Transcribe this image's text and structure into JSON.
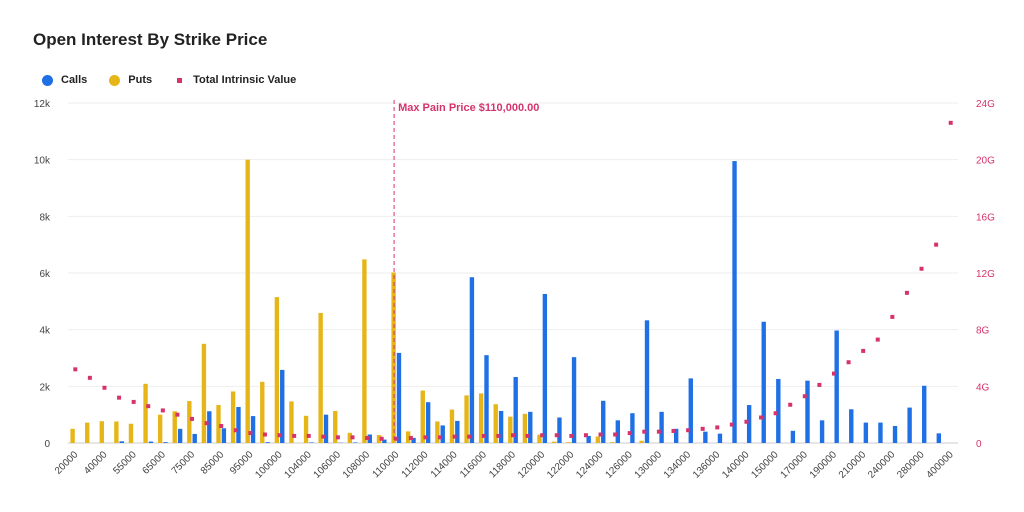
{
  "chart_data": {
    "type": "bar",
    "title": "Open Interest By Strike Price",
    "legend_position": "top-left",
    "colors": {
      "calls": "#1f6fe5",
      "puts": "#e6b619",
      "intrinsic": "#d6336c"
    },
    "y_left": {
      "ylim": [
        0,
        12000
      ],
      "ticks": [
        0,
        2000,
        4000,
        6000,
        8000,
        10000,
        12000
      ],
      "tick_labels": [
        "0",
        "2k",
        "4k",
        "6k",
        "8k",
        "10k",
        "12k"
      ]
    },
    "y_right": {
      "ylim": [
        0,
        24
      ],
      "unit": "G",
      "ticks": [
        0,
        4,
        8,
        12,
        16,
        20,
        24
      ],
      "tick_labels": [
        "0",
        "4G",
        "8G",
        "12G",
        "16G",
        "20G",
        "24G"
      ]
    },
    "categories": [
      "20000",
      "30000",
      "40000",
      "50000",
      "55000",
      "60000",
      "65000",
      "70000",
      "75000",
      "80000",
      "85000",
      "90000",
      "95000",
      "98000",
      "100000",
      "102000",
      "104000",
      "105000",
      "106000",
      "107000",
      "108000",
      "109000",
      "110000",
      "111000",
      "112000",
      "113000",
      "114000",
      "115000",
      "116000",
      "117000",
      "118000",
      "119000",
      "120000",
      "121000",
      "122000",
      "123000",
      "124000",
      "125000",
      "126000",
      "128000",
      "130000",
      "132000",
      "134000",
      "135000",
      "136000",
      "138000",
      "140000",
      "145000",
      "150000",
      "160000",
      "170000",
      "180000",
      "190000",
      "200000",
      "210000",
      "220000",
      "240000",
      "260000",
      "280000",
      "300000",
      "400000"
    ],
    "tick_labels": [
      "20000",
      "40000",
      "55000",
      "65000",
      "75000",
      "85000",
      "95000",
      "100000",
      "104000",
      "106000",
      "108000",
      "110000",
      "112000",
      "114000",
      "116000",
      "118000",
      "120000",
      "122000",
      "124000",
      "126000",
      "130000",
      "134000",
      "136000",
      "140000",
      "150000",
      "170000",
      "190000",
      "210000",
      "240000",
      "280000",
      "400000"
    ],
    "series": [
      {
        "name": "Calls",
        "values": [
          0,
          0,
          0,
          60,
          0,
          50,
          30,
          500,
          320,
          1120,
          520,
          1270,
          950,
          30,
          2580,
          0,
          20,
          1000,
          10,
          20,
          300,
          120,
          3180,
          180,
          1440,
          620,
          780,
          5850,
          3100,
          1130,
          2330,
          1100,
          5260,
          900,
          3030,
          250,
          1490,
          800,
          1050,
          4330,
          1100,
          500,
          2280,
          400,
          330,
          9950,
          1340,
          4280,
          2260,
          430,
          2200,
          800,
          3970,
          1190,
          720,
          720,
          600,
          1250,
          2020,
          340,
          0
        ]
      },
      {
        "name": "Puts",
        "values": [
          500,
          720,
          770,
          760,
          680,
          2090,
          1000,
          1120,
          1480,
          3500,
          1340,
          1820,
          10000,
          2160,
          5150,
          1470,
          960,
          4590,
          1130,
          360,
          6480,
          280,
          6020,
          410,
          1850,
          760,
          1180,
          1680,
          1750,
          1370,
          930,
          1030,
          290,
          50,
          30,
          0,
          230,
          30,
          0,
          80,
          0,
          0,
          0,
          0,
          0,
          0,
          0,
          0,
          0,
          0,
          0,
          0,
          0,
          0,
          0,
          0,
          0,
          0,
          0,
          0,
          0
        ]
      },
      {
        "name": "Total Intrinsic Value",
        "values": [
          5.2,
          4.6,
          3.9,
          3.2,
          2.9,
          2.6,
          2.3,
          2.0,
          1.7,
          1.4,
          1.2,
          0.9,
          0.7,
          0.6,
          0.55,
          0.5,
          0.5,
          0.45,
          0.4,
          0.4,
          0.35,
          0.3,
          0.3,
          0.35,
          0.4,
          0.4,
          0.45,
          0.45,
          0.5,
          0.5,
          0.55,
          0.5,
          0.55,
          0.55,
          0.5,
          0.55,
          0.6,
          0.6,
          0.7,
          0.8,
          0.8,
          0.85,
          0.9,
          1.0,
          1.1,
          1.3,
          1.5,
          1.8,
          2.1,
          2.7,
          3.3,
          4.1,
          4.9,
          5.7,
          6.5,
          7.3,
          8.9,
          10.6,
          12.3,
          14.0,
          22.6
        ]
      }
    ],
    "annotation": {
      "label": "Max Pain Price $110,000.00",
      "x": "110000"
    }
  }
}
